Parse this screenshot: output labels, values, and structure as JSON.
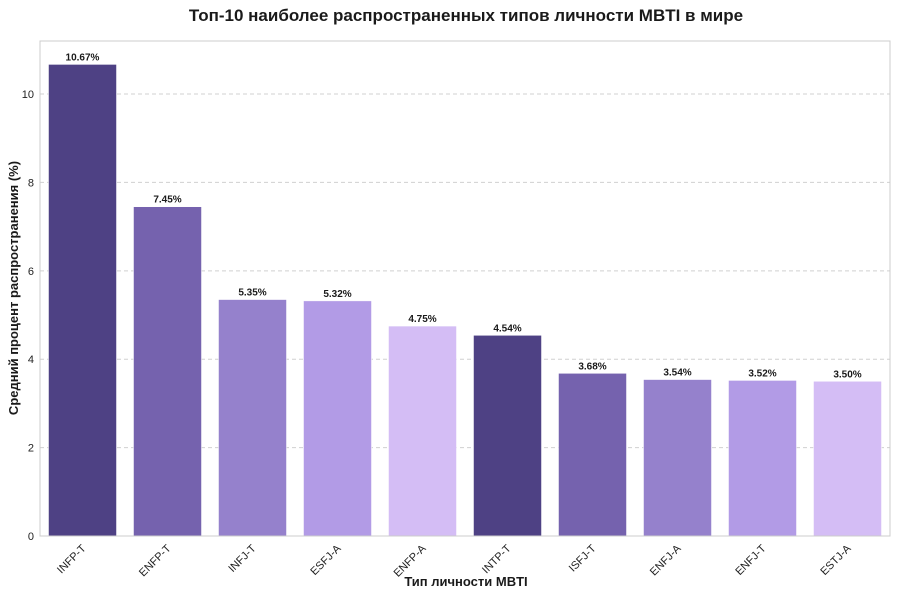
{
  "chart_data": {
    "type": "bar",
    "title": "Топ-10 наиболее распространенных типов личности MBTI в мире",
    "xlabel": "Тип личности MBTI",
    "ylabel": "Средний процент распространения (%)",
    "categories": [
      "INFP-T",
      "ENFP-T",
      "INFJ-T",
      "ESFJ-A",
      "ENFP-A",
      "INTP-T",
      "ISFJ-T",
      "ENFJ-A",
      "ENFJ-T",
      "ESTJ-A"
    ],
    "values": [
      10.67,
      7.45,
      5.35,
      5.32,
      4.75,
      4.54,
      3.68,
      3.54,
      3.52,
      3.5
    ],
    "value_labels": [
      "10.67%",
      "7.45%",
      "5.35%",
      "5.32%",
      "4.75%",
      "4.54%",
      "3.68%",
      "3.54%",
      "3.52%",
      "3.50%"
    ],
    "bar_colors": [
      "#4e4184",
      "#7562ae",
      "#9581cc",
      "#b29be6",
      "#d4bdf5",
      "#4e4184",
      "#7562ae",
      "#9581cc",
      "#b29be6",
      "#d4bdf5"
    ],
    "ylim": [
      0,
      11.2
    ],
    "yticks": [
      0,
      2,
      4,
      6,
      8,
      10
    ],
    "grid": "horizontal-dashed",
    "legend": "none"
  }
}
